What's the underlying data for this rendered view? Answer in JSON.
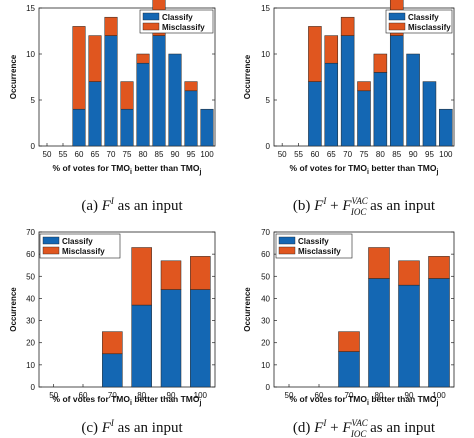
{
  "colors": {
    "classify": "#1467b3",
    "misclassify": "#e0561f"
  },
  "chart_data": [
    {
      "type": "bar",
      "stacked": true,
      "ylabel": "Occurrence",
      "xlabel": {
        "pre": "% of votes for TMO",
        "sub1": "i",
        "mid": " better than TMO",
        "sub2": "j"
      },
      "ylim": [
        0,
        15
      ],
      "yticks": [
        0,
        5,
        10,
        15
      ],
      "categories": [
        "50",
        "55",
        "60",
        "65",
        "70",
        "75",
        "80",
        "85",
        "90",
        "95",
        "100"
      ],
      "series": [
        {
          "name": "Classify",
          "values": [
            0,
            0,
            4,
            7,
            12,
            4,
            9,
            12,
            10,
            6,
            4
          ]
        },
        {
          "name": "Misclassify",
          "values": [
            0,
            0,
            9,
            5,
            2,
            3,
            1,
            4,
            0,
            1,
            0
          ]
        }
      ],
      "legend": "top-right",
      "caption": {
        "label": "(a)",
        "F": "F",
        "sup": "I",
        "sub": "",
        "text": "as an input"
      }
    },
    {
      "type": "bar",
      "stacked": true,
      "ylabel": "Occurrence",
      "xlabel": {
        "pre": "% of votes for TMO",
        "sub1": "i",
        "mid": " better than TMO",
        "sub2": "j"
      },
      "ylim": [
        0,
        15
      ],
      "yticks": [
        0,
        5,
        10,
        15
      ],
      "categories": [
        "50",
        "55",
        "60",
        "65",
        "70",
        "75",
        "80",
        "85",
        "90",
        "95",
        "100"
      ],
      "series": [
        {
          "name": "Classify",
          "values": [
            0,
            0,
            7,
            9,
            12,
            6,
            8,
            12,
            10,
            7,
            4
          ]
        },
        {
          "name": "Misclassify",
          "values": [
            0,
            0,
            6,
            3,
            2,
            1,
            2,
            4,
            0,
            0,
            0
          ]
        }
      ],
      "legend": "top-right",
      "caption": {
        "label": "(b)",
        "F": "F",
        "sup": "I",
        "plus": "+",
        "F2": "F",
        "sup2": "VAC",
        "sub2": "IOC",
        "text": "as an input"
      }
    },
    {
      "type": "bar",
      "stacked": true,
      "ylabel": "Occurrence",
      "xlabel": {
        "pre": "% of votes for TMO",
        "sub1": "i",
        "mid": " better than TMO",
        "sub2": "j"
      },
      "ylim": [
        0,
        70
      ],
      "yticks": [
        0,
        10,
        20,
        30,
        40,
        50,
        60,
        70
      ],
      "categories": [
        "50",
        "60",
        "70",
        "80",
        "90",
        "100"
      ],
      "series": [
        {
          "name": "Classify",
          "values": [
            0,
            0,
            15,
            37,
            44,
            44
          ]
        },
        {
          "name": "Misclassify",
          "values": [
            0,
            0,
            10,
            26,
            13,
            15
          ]
        }
      ],
      "legend": "top-left",
      "caption": {
        "label": "(c)",
        "F": "F",
        "sup": "I",
        "text": "as an input"
      }
    },
    {
      "type": "bar",
      "stacked": true,
      "ylabel": "Occurrence",
      "xlabel": {
        "pre": "% of votes for TMO",
        "sub1": "i",
        "mid": " better than TMO",
        "sub2": "j"
      },
      "ylim": [
        0,
        70
      ],
      "yticks": [
        0,
        10,
        20,
        30,
        40,
        50,
        60,
        70
      ],
      "categories": [
        "50",
        "60",
        "70",
        "80",
        "90",
        "100"
      ],
      "series": [
        {
          "name": "Classify",
          "values": [
            0,
            0,
            16,
            49,
            46,
            49
          ]
        },
        {
          "name": "Misclassify",
          "values": [
            0,
            0,
            9,
            14,
            11,
            10
          ]
        }
      ],
      "legend": "top-left",
      "caption": {
        "label": "(d)",
        "F": "F",
        "sup": "I",
        "plus": "+",
        "F2": "F",
        "sup2": "VAC",
        "sub2": "IOC",
        "text": "as an input"
      }
    }
  ]
}
